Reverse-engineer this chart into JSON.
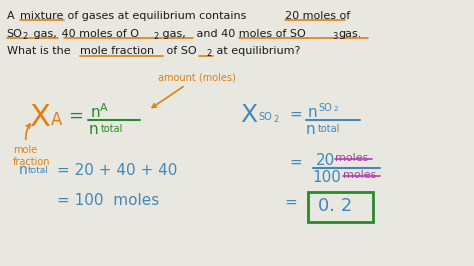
{
  "bg_color": "#e8e8e0",
  "text_color_black": "#1a1a1a",
  "text_color_green": "#2a8a2a",
  "text_color_orange": "#e08010",
  "text_color_blue": "#4488bb",
  "text_color_purple": "#aa44aa",
  "figsize": [
    4.74,
    2.66
  ],
  "dpi": 100,
  "line1": "A mixture of gases at equilibrium contains  20 moles of",
  "line2_a": "SO",
  "line2_b": "2",
  "line2_c": " gas,  40 moles of O",
  "line2_d": "2",
  "line2_e": " gas, and 40 moles of SO",
  "line2_f": "3",
  "line2_g": "gas.",
  "line3_a": "What is the ",
  "line3_b": "mole fraction",
  "line3_c": " of SO",
  "line3_d": "2",
  "line3_e": " at equilibrium?"
}
